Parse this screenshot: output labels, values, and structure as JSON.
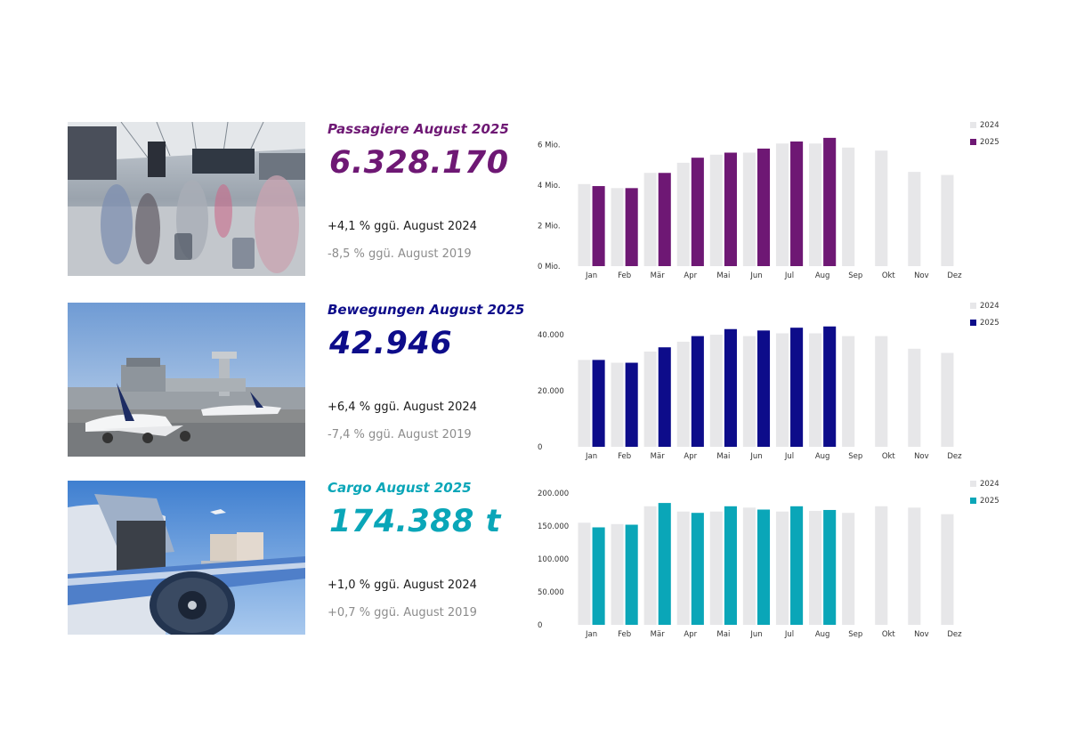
{
  "colors": {
    "series_2024": "#e7e7e9",
    "passagiere": "#6e1874",
    "bewegungen": "#0d0c8a",
    "cargo": "#0aa6b8"
  },
  "rows": [
    {
      "title": "Passagiere August 2025",
      "value": "6.328.170",
      "delta_2024": "+4,1 % ggü. August 2024",
      "delta_2019": "-8,5 % ggü. August 2019",
      "image_icon": "airport-terminal-passengers-photo"
    },
    {
      "title": "Bewegungen August 2025",
      "value": "42.946",
      "delta_2024": "+6,4 % ggü. August 2024",
      "delta_2019": "-7,4 % ggü. August 2019",
      "image_icon": "airport-apron-aircraft-photo"
    },
    {
      "title": "Cargo August 2025",
      "value": "174.388 t",
      "delta_2024": "+1,0 % ggü. August 2024",
      "delta_2019": "+0,7 % ggü. August 2019",
      "image_icon": "cargo-aircraft-loading-photo"
    }
  ],
  "chart_data": [
    {
      "type": "bar",
      "categories": [
        "Jan",
        "Feb",
        "Mär",
        "Apr",
        "Mai",
        "Jun",
        "Jul",
        "Aug",
        "Sep",
        "Okt",
        "Nov",
        "Dez"
      ],
      "series": [
        {
          "name": "2024",
          "values": [
            4.05,
            3.85,
            4.6,
            5.1,
            5.5,
            5.6,
            6.05,
            6.05,
            5.85,
            5.7,
            4.65,
            4.5
          ]
        },
        {
          "name": "2025",
          "values": [
            3.95,
            3.85,
            4.6,
            5.35,
            5.6,
            5.8,
            6.15,
            6.33,
            null,
            null,
            null,
            null
          ]
        }
      ],
      "yticks": [
        "0 Mio.",
        "2 Mio.",
        "4 Mio.",
        "6 Mio."
      ],
      "ytick_values": [
        0,
        2,
        4,
        6
      ],
      "ylim": [
        0,
        6.5
      ],
      "legend": "top-right",
      "grid": false
    },
    {
      "type": "bar",
      "categories": [
        "Jan",
        "Feb",
        "Mär",
        "Apr",
        "Mai",
        "Jun",
        "Jul",
        "Aug",
        "Sep",
        "Okt",
        "Nov",
        "Dez"
      ],
      "series": [
        {
          "name": "2024",
          "values": [
            31000,
            30000,
            34000,
            37500,
            40000,
            39500,
            40500,
            40500,
            39500,
            39500,
            35000,
            33500
          ]
        },
        {
          "name": "2025",
          "values": [
            31000,
            30000,
            35500,
            39500,
            42000,
            41500,
            42500,
            42946,
            null,
            null,
            null,
            null
          ]
        }
      ],
      "yticks": [
        "0",
        "20.000",
        "40.000"
      ],
      "ytick_values": [
        0,
        20000,
        40000
      ],
      "ylim": [
        0,
        47000
      ],
      "legend": "top-right",
      "grid": false
    },
    {
      "type": "bar",
      "categories": [
        "Jan",
        "Feb",
        "Mär",
        "Apr",
        "Mai",
        "Jun",
        "Jul",
        "Aug",
        "Sep",
        "Okt",
        "Nov",
        "Dez"
      ],
      "series": [
        {
          "name": "2024",
          "values": [
            155000,
            153000,
            180000,
            172000,
            172000,
            178000,
            172000,
            173000,
            170000,
            180000,
            178000,
            168000
          ]
        },
        {
          "name": "2025",
          "values": [
            148000,
            152000,
            185000,
            170000,
            180000,
            175000,
            180000,
            174388,
            null,
            null,
            null,
            null
          ]
        }
      ],
      "yticks": [
        "0",
        "50.000",
        "100.000",
        "150.000",
        "200.000"
      ],
      "ytick_values": [
        0,
        50000,
        100000,
        150000,
        200000
      ],
      "ylim": [
        0,
        200000
      ],
      "legend": "top-right",
      "grid": false
    }
  ]
}
